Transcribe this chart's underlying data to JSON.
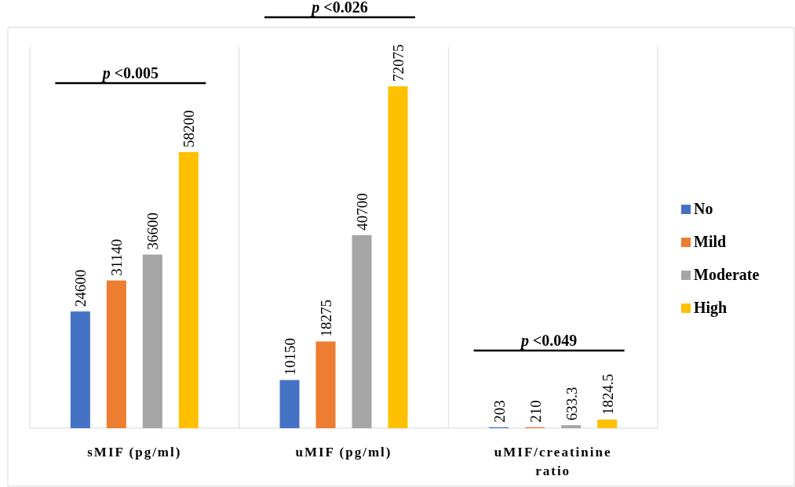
{
  "chart_data": {
    "type": "bar",
    "categories": [
      "sMIF (pg/ml)",
      "uMIF (pg/ml)",
      "uMIF/creatinine ratio"
    ],
    "series": [
      {
        "name": "No",
        "color": "#4472c4",
        "values": [
          24600,
          10150,
          203
        ]
      },
      {
        "name": "Mild",
        "color": "#ed7d31",
        "values": [
          31140,
          18275,
          210
        ]
      },
      {
        "name": "Moderate",
        "color": "#a5a5a5",
        "values": [
          36600,
          40700,
          633.3
        ]
      },
      {
        "name": "High",
        "color": "#ffc000",
        "values": [
          58200,
          72075,
          1824.5
        ]
      }
    ],
    "data_labels": true,
    "grid": "x",
    "legend": "right",
    "annotations": [
      "p <0.005",
      "p <0.026",
      "p <0.049"
    ]
  }
}
